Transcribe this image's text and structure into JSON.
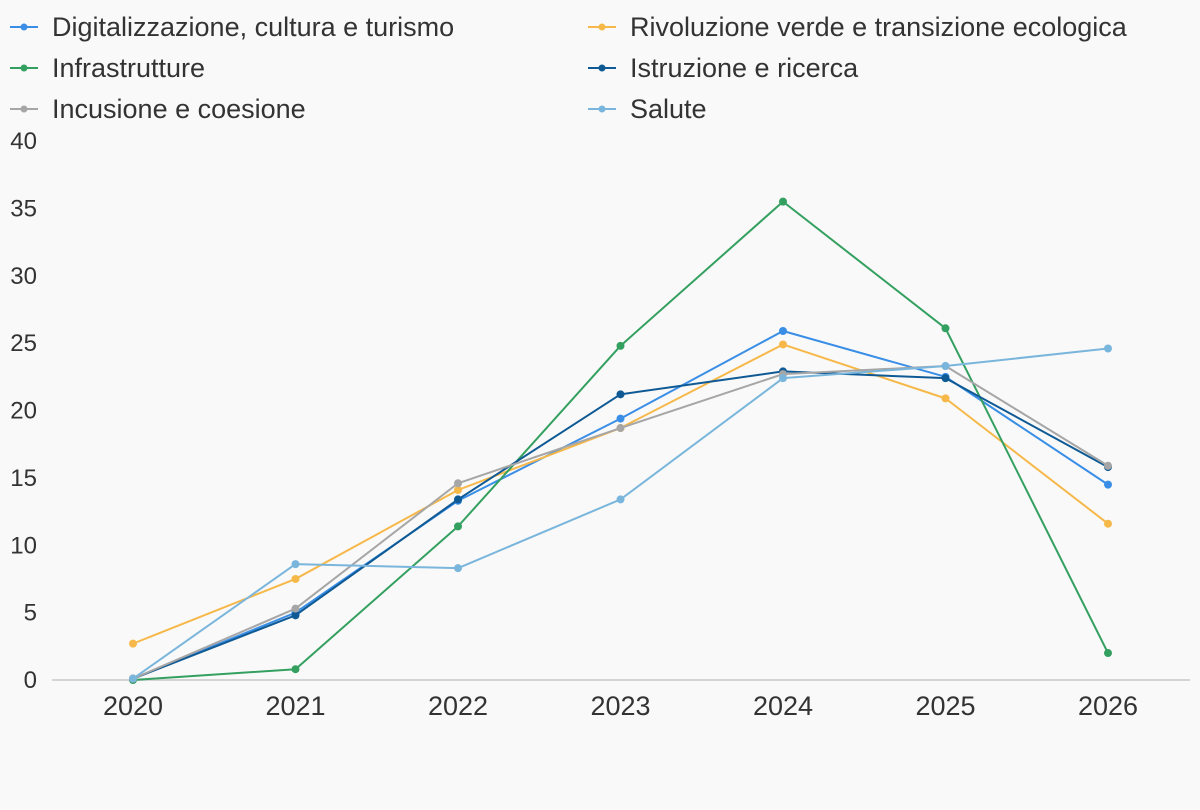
{
  "chart_data": {
    "type": "line",
    "title": "",
    "xlabel": "",
    "ylabel": "",
    "x": [
      "2020",
      "2021",
      "2022",
      "2023",
      "2024",
      "2025",
      "2026"
    ],
    "ylim": [
      0,
      40
    ],
    "yticks": [
      0,
      5,
      10,
      15,
      20,
      25,
      30,
      35,
      40
    ],
    "grid": false,
    "legend_position": "top",
    "series": [
      {
        "name": "Digitalizzazione, cultura e turismo",
        "color": "#3a8ee6",
        "values": [
          0.1,
          5.0,
          13.3,
          19.4,
          25.9,
          22.5,
          14.5
        ]
      },
      {
        "name": "Rivoluzione verde e transizione ecologica",
        "color": "#f7b84a",
        "values": [
          2.7,
          7.5,
          14.1,
          18.7,
          24.9,
          20.9,
          11.6
        ]
      },
      {
        "name": "Infrastrutture",
        "color": "#34a060",
        "values": [
          0.0,
          0.8,
          11.4,
          24.8,
          35.5,
          26.1,
          2.0
        ]
      },
      {
        "name": "Istruzione e ricerca",
        "color": "#0f5a94",
        "values": [
          0.1,
          4.8,
          13.4,
          21.2,
          22.9,
          22.4,
          15.8
        ]
      },
      {
        "name": "Incusione e coesione",
        "color": "#a6a6a6",
        "values": [
          0.1,
          5.3,
          14.6,
          18.7,
          22.7,
          23.3,
          15.9
        ]
      },
      {
        "name": "Salute",
        "color": "#7ab6dc",
        "values": [
          0.1,
          8.6,
          8.3,
          13.4,
          22.4,
          23.3,
          24.6
        ]
      }
    ]
  }
}
